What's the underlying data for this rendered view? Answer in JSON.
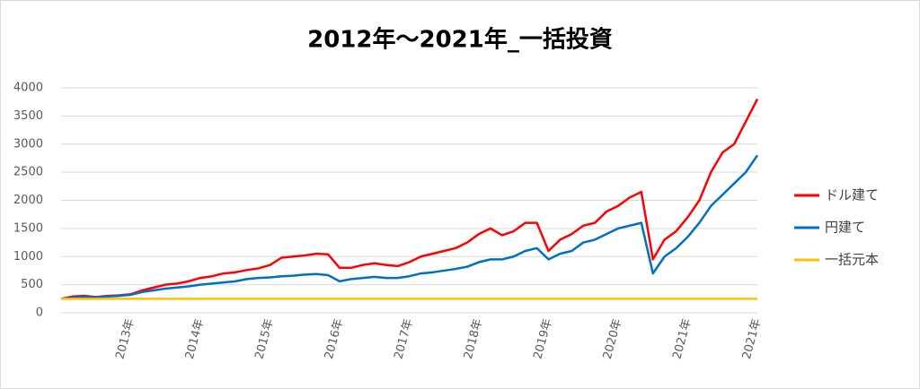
{
  "chart_data": {
    "type": "line",
    "title": "2012年～2021年_一括投資",
    "categories": [
      null,
      null,
      null,
      null,
      null,
      null,
      "2013年",
      null,
      null,
      null,
      null,
      null,
      "2014年",
      null,
      null,
      null,
      null,
      null,
      "2015年",
      null,
      null,
      null,
      null,
      null,
      "2016年",
      null,
      null,
      null,
      null,
      null,
      "2017年",
      null,
      null,
      null,
      null,
      null,
      "2018年",
      null,
      null,
      null,
      null,
      null,
      "2019年",
      null,
      null,
      null,
      null,
      null,
      "2020年",
      null,
      null,
      null,
      null,
      null,
      "2021年",
      null,
      null,
      null,
      null,
      null,
      "2021年"
    ],
    "series": [
      {
        "name": "ドル建て",
        "color": "#ff0000",
        "values": [
          250,
          290,
          300,
          280,
          300,
          310,
          330,
          400,
          450,
          500,
          520,
          560,
          620,
          650,
          700,
          720,
          760,
          790,
          850,
          980,
          1000,
          1020,
          1050,
          1040,
          800,
          800,
          850,
          880,
          850,
          830,
          900,
          1000,
          1050,
          1100,
          1150,
          1250,
          1400,
          1500,
          1380,
          1450,
          1600,
          1600,
          1100,
          1300,
          1400,
          1550,
          1600,
          1800,
          1900,
          2050,
          2150,
          950,
          1300,
          1450,
          1700,
          2000,
          2500,
          2850,
          3000,
          3400,
          3800
        ]
      },
      {
        "name": "円建て",
        "color": "#0070c0",
        "values": [
          250,
          270,
          280,
          270,
          290,
          300,
          320,
          370,
          400,
          430,
          450,
          470,
          500,
          520,
          540,
          560,
          600,
          620,
          630,
          650,
          660,
          680,
          690,
          670,
          560,
          600,
          620,
          640,
          620,
          620,
          650,
          700,
          720,
          750,
          780,
          820,
          900,
          950,
          950,
          1000,
          1100,
          1150,
          950,
          1050,
          1100,
          1250,
          1300,
          1400,
          1500,
          1550,
          1600,
          700,
          1000,
          1150,
          1350,
          1600,
          1900,
          2100,
          2300,
          2500,
          2800
        ]
      },
      {
        "name": "一括元本",
        "color": "#ffc000",
        "values": [
          250,
          250,
          250,
          250,
          250,
          250,
          250,
          250,
          250,
          250,
          250,
          250,
          250,
          250,
          250,
          250,
          250,
          250,
          250,
          250,
          250,
          250,
          250,
          250,
          250,
          250,
          250,
          250,
          250,
          250,
          250,
          250,
          250,
          250,
          250,
          250,
          250,
          250,
          250,
          250,
          250,
          250,
          250,
          250,
          250,
          250,
          250,
          250,
          250,
          250,
          250,
          250,
          250,
          250,
          250,
          250,
          250,
          250,
          250,
          250,
          250
        ]
      }
    ],
    "ylim": [
      0,
      4000
    ],
    "yticks": [
      0,
      500,
      1000,
      1500,
      2000,
      2500,
      3000,
      3500,
      4000
    ],
    "grid": true,
    "legend": "right"
  }
}
